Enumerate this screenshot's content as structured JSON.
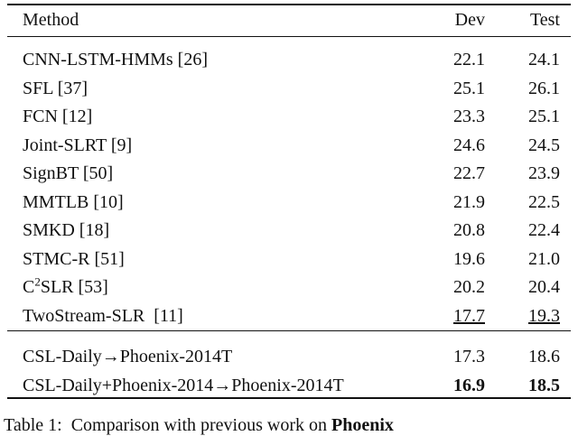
{
  "table": {
    "header": [
      "Method",
      "Dev",
      "Test"
    ],
    "groups": [
      {
        "rows": [
          {
            "method": "CNN-LSTM-HMMs [26]",
            "dev": "22.1",
            "test": "24.1"
          },
          {
            "method": "SFL [37]",
            "dev": "25.1",
            "test": "26.1"
          },
          {
            "method": "FCN [12]",
            "dev": "23.3",
            "test": "25.1"
          },
          {
            "method": "Joint-SLRT [9]",
            "dev": "24.6",
            "test": "24.5"
          },
          {
            "method": "SignBT [50]",
            "dev": "22.7",
            "test": "23.9"
          },
          {
            "method": "MMTLB [10]",
            "dev": "21.9",
            "test": "22.5"
          },
          {
            "method": "SMKD [18]",
            "dev": "20.8",
            "test": "22.4"
          },
          {
            "method": "STMC-R [51]",
            "dev": "19.6",
            "test": "21.0"
          },
          {
            "method": [
              "C",
              "2",
              "SLR [53]"
            ],
            "dev": "20.2",
            "test": "20.4"
          },
          {
            "method": "TwoStream-SLR  [11]",
            "dev": "17.7",
            "test": "19.3",
            "emphasis": "underline"
          }
        ]
      },
      {
        "rows": [
          {
            "method": "CSL-Daily→Phoenix-2014T",
            "dev": "17.3",
            "test": "18.6"
          },
          {
            "method": "CSL-Daily+Phoenix-2014→Phoenix-2014T",
            "dev": "16.9",
            "test": "18.5",
            "emphasis": "bold"
          }
        ]
      }
    ],
    "caption": [
      "Table 1:  Comparison with previous work on ",
      "Phoenix"
    ]
  }
}
